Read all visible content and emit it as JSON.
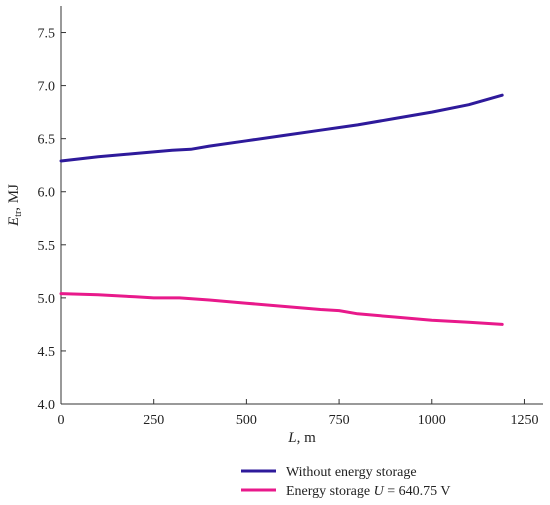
{
  "chart_data": {
    "type": "line",
    "xlabel": {
      "var": "L",
      "unit": ", m"
    },
    "ylabel": {
      "var": "E",
      "sub": "tr",
      "unit": ", MJ"
    },
    "xlim": [
      0,
      1300
    ],
    "ylim": [
      4.0,
      7.75
    ],
    "xticks": [
      0,
      250,
      500,
      750,
      1000,
      1250
    ],
    "yticks": [
      4.0,
      4.5,
      5.0,
      5.5,
      6.0,
      6.5,
      7.0,
      7.5
    ],
    "tick_labels_x": [
      "0",
      "250",
      "500",
      "750",
      "1000",
      "1250"
    ],
    "tick_labels_y": [
      "4.0",
      "4.5",
      "5.0",
      "5.5",
      "6.0",
      "6.5",
      "7.0",
      "7.5"
    ],
    "grid": false,
    "legend_position": "bottom-center",
    "series": [
      {
        "name": "Without energy storage",
        "legend_parts": {
          "pre": "Without energy storage",
          "var": "",
          "post": ""
        },
        "color": "#2e1a9b",
        "x": [
          0,
          100,
          200,
          300,
          350,
          400,
          500,
          600,
          700,
          800,
          900,
          1000,
          1100,
          1190
        ],
        "y": [
          6.29,
          6.33,
          6.36,
          6.39,
          6.4,
          6.43,
          6.48,
          6.53,
          6.58,
          6.63,
          6.69,
          6.75,
          6.82,
          6.91
        ]
      },
      {
        "name": "Energy storage U = 640.75 V",
        "legend_parts": {
          "pre": "Energy storage ",
          "var": "U",
          "post": " = 640.75 V"
        },
        "color": "#e8198b",
        "x": [
          0,
          100,
          200,
          250,
          320,
          400,
          500,
          600,
          700,
          750,
          800,
          900,
          1000,
          1100,
          1190
        ],
        "y": [
          5.04,
          5.03,
          5.01,
          5.0,
          5.0,
          4.98,
          4.95,
          4.92,
          4.89,
          4.88,
          4.85,
          4.82,
          4.79,
          4.77,
          4.75
        ]
      }
    ]
  }
}
